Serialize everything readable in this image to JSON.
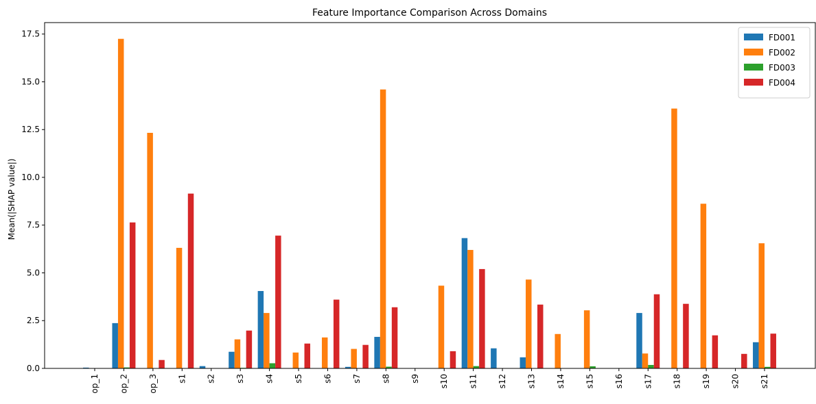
{
  "chart_data": {
    "type": "bar",
    "title": "Feature Importance Comparison Across Domains",
    "xlabel": "",
    "ylabel": "Mean(|SHAP value|)",
    "ylim": [
      0,
      18.1
    ],
    "yticks": [
      "0.0",
      "2.5",
      "5.0",
      "7.5",
      "10.0",
      "12.5",
      "15.0",
      "17.5"
    ],
    "ytick_values": [
      0,
      2.5,
      5,
      7.5,
      10,
      12.5,
      15,
      17.5
    ],
    "grid": false,
    "legend_position": "top-right",
    "categories": [
      "op_1",
      "op_2",
      "op_3",
      "s1",
      "s2",
      "s3",
      "s4",
      "s5",
      "s6",
      "s7",
      "s8",
      "s9",
      "s10",
      "s11",
      "s12",
      "s13",
      "s14",
      "s15",
      "s16",
      "s17",
      "s18",
      "s19",
      "s20",
      "s21"
    ],
    "series": [
      {
        "name": "FD001",
        "color": "#1f77b4",
        "values": [
          0.04,
          2.37,
          0,
          0,
          0.12,
          0.87,
          4.05,
          0,
          0,
          0.08,
          1.65,
          0,
          0,
          6.82,
          1.05,
          0.58,
          0,
          0,
          0,
          2.9,
          0,
          0,
          0,
          1.37
        ]
      },
      {
        "name": "FD002",
        "color": "#ff7f0e",
        "values": [
          0,
          17.25,
          12.33,
          6.31,
          0,
          1.52,
          2.9,
          0.83,
          1.62,
          1.02,
          14.6,
          0,
          4.33,
          6.2,
          0,
          4.65,
          1.8,
          3.04,
          0,
          0.78,
          13.6,
          8.62,
          0,
          6.55
        ]
      },
      {
        "name": "FD003",
        "color": "#2ca02c",
        "values": [
          0,
          0.05,
          0,
          0,
          0,
          0.03,
          0.27,
          0,
          0,
          0,
          0.09,
          0,
          0,
          0.12,
          0,
          0,
          0,
          0.11,
          0,
          0.18,
          0,
          0,
          0,
          0.08
        ]
      },
      {
        "name": "FD004",
        "color": "#d62728",
        "values": [
          0,
          7.64,
          0.44,
          9.15,
          0,
          1.98,
          6.95,
          1.3,
          3.6,
          1.23,
          3.2,
          0,
          0.9,
          5.2,
          0,
          3.34,
          0,
          0,
          0,
          3.88,
          3.38,
          1.73,
          0.76,
          1.82
        ]
      }
    ]
  }
}
